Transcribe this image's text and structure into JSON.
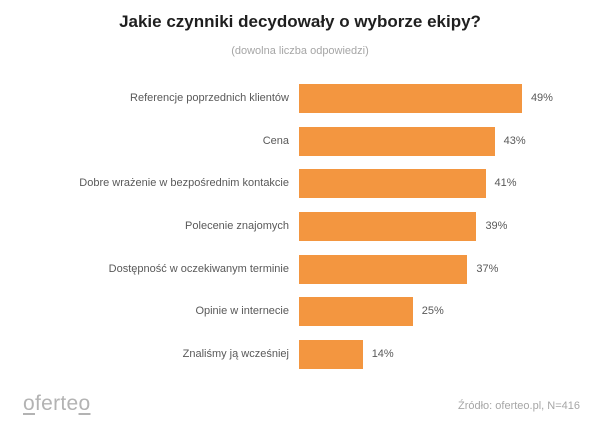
{
  "header": {
    "title": "Jakie czynniki decydowały o wyborze ekipy?",
    "subtitle": "(dowolna liczba odpowiedzi)"
  },
  "footer": {
    "logo_prefix": "o",
    "logo_middle": "ferte",
    "logo_suffix": "o",
    "source": "Źródło: oferteo.pl, N=416"
  },
  "colors": {
    "bar": "#f39640",
    "label": "#595959",
    "title": "#1f1f1f"
  },
  "chart_data": {
    "type": "bar",
    "orientation": "horizontal",
    "title": "Jakie czynniki decydowały o wyborze ekipy?",
    "subtitle": "(dowolna liczba odpowiedzi)",
    "xlabel": "",
    "ylabel": "",
    "unit": "%",
    "grid": false,
    "legend": null,
    "categories": [
      "Referencje poprzednich klientów",
      "Cena",
      "Dobre wrażenie w bezpośrednim kontakcie",
      "Polecenie znajomych",
      "Dostępność w oczekiwanym terminie",
      "Opinie w internecie",
      "Znaliśmy ją wcześniej"
    ],
    "values": [
      49,
      43,
      41,
      39,
      37,
      25,
      14
    ],
    "labels": [
      "49%",
      "43%",
      "41%",
      "39%",
      "37%",
      "25%",
      "14%"
    ],
    "source": "Źródło: oferteo.pl, N=416"
  }
}
